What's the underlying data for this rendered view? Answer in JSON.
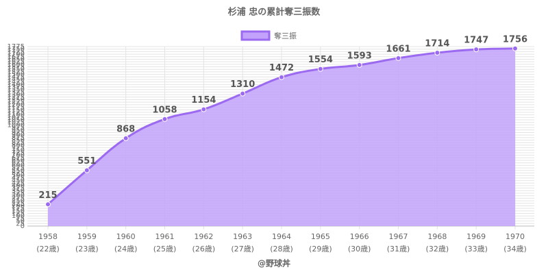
{
  "chart_data": {
    "type": "area",
    "title": "杉浦 忠の累計奪三振数",
    "categories": [
      "1958",
      "1959",
      "1960",
      "1961",
      "1962",
      "1963",
      "1964",
      "1965",
      "1966",
      "1967",
      "1968",
      "1969",
      "1970"
    ],
    "category_sublabels": [
      "(22歳)",
      "(23歳)",
      "(24歳)",
      "(25歳)",
      "(26歳)",
      "(27歳)",
      "(28歳)",
      "(29歳)",
      "(30歳)",
      "(31歳)",
      "(32歳)",
      "(33歳)",
      "(34歳)"
    ],
    "series": [
      {
        "name": "奪三振",
        "color": "#9b6af0",
        "fill": "#c2a2fa",
        "values": [
          215,
          551,
          868,
          1058,
          1154,
          1310,
          1472,
          1554,
          1593,
          1661,
          1714,
          1747,
          1756
        ]
      }
    ],
    "ylim": [
      0,
      1775
    ],
    "yticks": [
      0,
      25,
      50,
      75,
      100,
      125,
      150,
      175,
      200,
      225,
      250,
      275,
      300,
      325,
      350,
      375,
      400,
      425,
      450,
      475,
      500,
      525,
      550,
      575,
      600,
      625,
      650,
      675,
      700,
      725,
      750,
      775,
      800,
      825,
      850,
      875,
      900,
      925,
      950,
      975,
      1000,
      1025,
      1050,
      1075,
      1100,
      1125,
      1150,
      1175,
      1200,
      1225,
      1250,
      1275,
      1300,
      1325,
      1350,
      1375,
      1400,
      1425,
      1450,
      1475,
      1500,
      1525,
      1550,
      1575,
      1600,
      1625,
      1650,
      1675,
      1700,
      1725,
      1750,
      1775
    ],
    "grid": true,
    "legend": "top",
    "credit": "@野球丼"
  }
}
